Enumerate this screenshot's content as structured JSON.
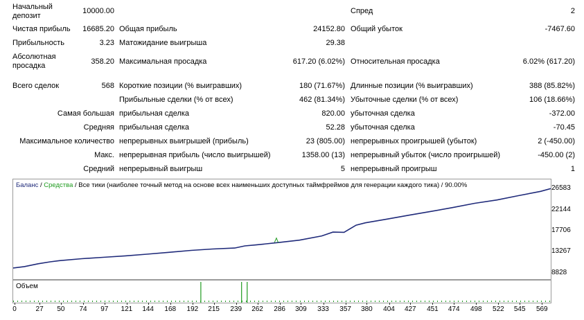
{
  "stats": {
    "initial_deposit_label": "Начальный депозит",
    "initial_deposit": "10000.00",
    "spread_label": "Спред",
    "spread": "2",
    "net_profit_label": "Чистая прибыль",
    "net_profit": "16685.20",
    "gross_profit_label": "Общая прибыль",
    "gross_profit": "24152.80",
    "gross_loss_label": "Общий убыток",
    "gross_loss": "-7467.60",
    "profit_factor_label": "Прибыльность",
    "profit_factor": "3.23",
    "expected_payoff_label": "Матожидание выигрыша",
    "expected_payoff": "29.38",
    "absolute_drawdown_label": "Абсолютная просадка",
    "absolute_drawdown": "358.20",
    "max_drawdown_label": "Максимальная просадка",
    "max_drawdown": "617.20 (6.02%)",
    "relative_drawdown_label": "Относительная просадка",
    "relative_drawdown": "6.02% (617.20)",
    "total_trades_label": "Всего сделок",
    "total_trades": "568",
    "short_positions_label": "Короткие позиции (% выигравших)",
    "short_positions": "180 (71.67%)",
    "long_positions_label": "Длинные позиции (% выигравших)",
    "long_positions": "388 (85.82%)",
    "profit_trades_label": "Прибыльные сделки (% от всех)",
    "profit_trades": "462 (81.34%)",
    "loss_trades_label": "Убыточные сделки (% от всех)",
    "loss_trades": "106 (18.66%)",
    "largest_prefix": "Самая большая",
    "largest_profit_label": "прибыльная сделка",
    "largest_profit": "820.00",
    "largest_loss_label": "убыточная сделка",
    "largest_loss": "-372.00",
    "average_prefix": "Средняя",
    "average_profit_label": "прибыльная сделка",
    "average_profit": "52.28",
    "average_loss_label": "убыточная сделка",
    "average_loss": "-70.45",
    "max_count_prefix": "Максимальное количество",
    "max_consec_wins_label": "непрерывных выигрышей (прибыль)",
    "max_consec_wins": "23 (805.00)",
    "max_consec_losses_label": "непрерывных проигрышей (убыток)",
    "max_consec_losses": "2 (-450.00)",
    "max_prefix": "Макс.",
    "max_consec_profit_label": "непрерывная прибыль (число выигрышей)",
    "max_consec_profit": "1358.00 (13)",
    "max_consec_loss_label": "непрерывный убыток (число проигрышей)",
    "max_consec_loss": "-450.00 (2)",
    "avg_prefix": "Средний",
    "avg_consec_wins_label": "непрерывный выигрыш",
    "avg_consec_wins": "5",
    "avg_consec_losses_label": "непрерывный проигрыш",
    "avg_consec_losses": "1"
  },
  "chart": {
    "legend_balance": "Баланс",
    "legend_sep1": " / ",
    "legend_equity": "Средства",
    "legend_rest": " / Все тики (наиболее точный метод на основе всех наименьших доступных таймфреймов для генерации каждого тика) / 90.00%",
    "volume_label": "Объем",
    "balance_color": "#1f2a7a",
    "equity_color": "#1f9b1f",
    "volume_color": "#1f9b1f"
  },
  "chart_data": {
    "type": "line",
    "title": "Баланс / Средства",
    "y_ticks": [
      26583,
      22144,
      17706,
      13267,
      8828
    ],
    "ylim": [
      8828,
      26583
    ],
    "x_ticks": [
      0,
      27,
      50,
      74,
      97,
      121,
      144,
      168,
      192,
      215,
      239,
      262,
      286,
      309,
      333,
      357,
      380,
      404,
      427,
      451,
      474,
      498,
      522,
      545,
      569
    ],
    "xlim": [
      0,
      580
    ],
    "series": [
      {
        "name": "Баланс",
        "x": [
          0,
          12,
          27,
          40,
          50,
          74,
          97,
          121,
          144,
          168,
          192,
          215,
          239,
          250,
          262,
          286,
          309,
          333,
          345,
          357,
          370,
          380,
          404,
          427,
          451,
          474,
          498,
          522,
          545,
          569,
          580
        ],
        "y": [
          10000,
          10300,
          10900,
          11300,
          11550,
          11950,
          12250,
          12550,
          12900,
          13300,
          13700,
          14000,
          14200,
          14650,
          14850,
          15350,
          15850,
          16750,
          17550,
          17500,
          19000,
          19500,
          20300,
          21100,
          21900,
          22700,
          23600,
          24300,
          25200,
          26100,
          26683
        ]
      },
      {
        "name": "Средства",
        "x": [
          282,
          284,
          286
        ],
        "y": [
          15400,
          16300,
          15350
        ]
      }
    ],
    "volume_spikes": [
      {
        "x": 202,
        "value": 1
      },
      {
        "x": 246,
        "value": 1
      },
      {
        "x": 252,
        "value": 1
      }
    ]
  }
}
